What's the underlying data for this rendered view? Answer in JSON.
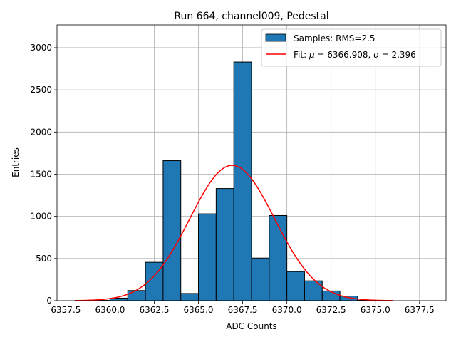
{
  "chart_data": {
    "type": "bar",
    "title": "Run 664, channel009, Pedestal",
    "xlabel": "ADC Counts",
    "ylabel": "Entries",
    "xlim": [
      6357.0,
      6379.0
    ],
    "ylim": [
      0,
      3270
    ],
    "grid": true,
    "legend_position": "top-right",
    "bar_color": "#1f77b4",
    "bar_edge_color": "#000000",
    "fit_color": "#ff0000",
    "bin_width": 1.0,
    "bins": [
      {
        "x": 6359.5,
        "value": 4
      },
      {
        "x": 6360.5,
        "value": 30
      },
      {
        "x": 6361.5,
        "value": 120
      },
      {
        "x": 6362.5,
        "value": 455
      },
      {
        "x": 6363.5,
        "value": 1660
      },
      {
        "x": 6364.5,
        "value": 85
      },
      {
        "x": 6365.5,
        "value": 1030
      },
      {
        "x": 6366.5,
        "value": 1330
      },
      {
        "x": 6367.5,
        "value": 2830
      },
      {
        "x": 6368.5,
        "value": 505
      },
      {
        "x": 6369.5,
        "value": 1010
      },
      {
        "x": 6370.5,
        "value": 345
      },
      {
        "x": 6371.5,
        "value": 235
      },
      {
        "x": 6372.5,
        "value": 115
      },
      {
        "x": 6373.5,
        "value": 55
      },
      {
        "x": 6374.5,
        "value": 5
      }
    ],
    "fit": {
      "mu": 6366.908,
      "sigma": 2.396,
      "amplitude": 1605,
      "x_range": [
        6358.0,
        6376.0
      ]
    },
    "xticks": [
      "6357.5",
      "6360.0",
      "6362.5",
      "6365.0",
      "6367.5",
      "6370.0",
      "6372.5",
      "6375.0",
      "6377.5"
    ],
    "xtick_values": [
      6357.5,
      6360.0,
      6362.5,
      6365.0,
      6367.5,
      6370.0,
      6372.5,
      6375.0,
      6377.5
    ],
    "yticks": [
      "0",
      "500",
      "1000",
      "1500",
      "2000",
      "2500",
      "3000"
    ],
    "ytick_values": [
      0,
      500,
      1000,
      1500,
      2000,
      2500,
      3000
    ],
    "legend": [
      {
        "label": "Samples: RMS=2.5",
        "kind": "patch"
      },
      {
        "label_prefix": "Fit: ",
        "mu_symbol": "μ",
        "mu_text": " = 6366.908, ",
        "sigma_symbol": "σ",
        "sigma_text": " = 2.396",
        "kind": "line"
      }
    ]
  }
}
